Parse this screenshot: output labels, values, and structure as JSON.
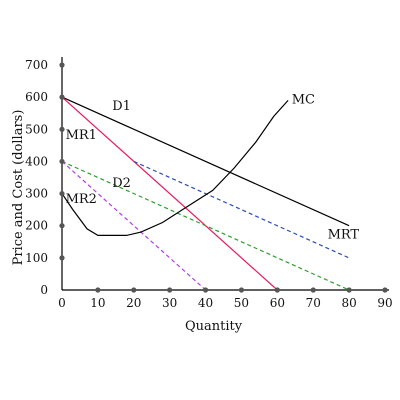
{
  "chart_data": {
    "type": "line",
    "xlabel": "Quantity",
    "ylabel": "Price and Cost (dollars)",
    "xlim": [
      0,
      90
    ],
    "ylim": [
      0,
      700
    ],
    "x_ticks": [
      "0",
      "10",
      "20",
      "30",
      "40",
      "50",
      "60",
      "70",
      "80",
      "90"
    ],
    "y_ticks": [
      "0",
      "100",
      "200",
      "300",
      "400",
      "500",
      "600",
      "700"
    ],
    "grid": false,
    "series": [
      {
        "name": "D1",
        "style": "solid",
        "color": "#000000",
        "points": [
          [
            0,
            600
          ],
          [
            80,
            200
          ]
        ]
      },
      {
        "name": "MR1",
        "style": "solid",
        "color": "#e8195a",
        "points": [
          [
            0,
            600
          ],
          [
            60,
            0
          ]
        ]
      },
      {
        "name": "D2",
        "style": "dashed",
        "color": "#2e9e2e",
        "points": [
          [
            0,
            400
          ],
          [
            80,
            0
          ]
        ]
      },
      {
        "name": "MR2",
        "style": "dashed",
        "color": "#b23de6",
        "points": [
          [
            0,
            400
          ],
          [
            40,
            0
          ]
        ]
      },
      {
        "name": "MRT",
        "style": "dashed",
        "color": "#2a4bb5",
        "points": [
          [
            20,
            400
          ],
          [
            80,
            100
          ]
        ]
      },
      {
        "name": "MC",
        "style": "solid",
        "color": "#000000",
        "points": [
          [
            0,
            300
          ],
          [
            3,
            250
          ],
          [
            7,
            190
          ],
          [
            10,
            170
          ],
          [
            18,
            170
          ],
          [
            22,
            180
          ],
          [
            28,
            210
          ],
          [
            35,
            260
          ],
          [
            42,
            310
          ],
          [
            48,
            380
          ],
          [
            54,
            460
          ],
          [
            59,
            540
          ],
          [
            63,
            590
          ]
        ]
      }
    ],
    "labels": {
      "D1": "D1",
      "MR1": "MR1",
      "D2": "D2",
      "MR2": "MR2",
      "MRT": "MRT",
      "MC": "MC"
    }
  }
}
